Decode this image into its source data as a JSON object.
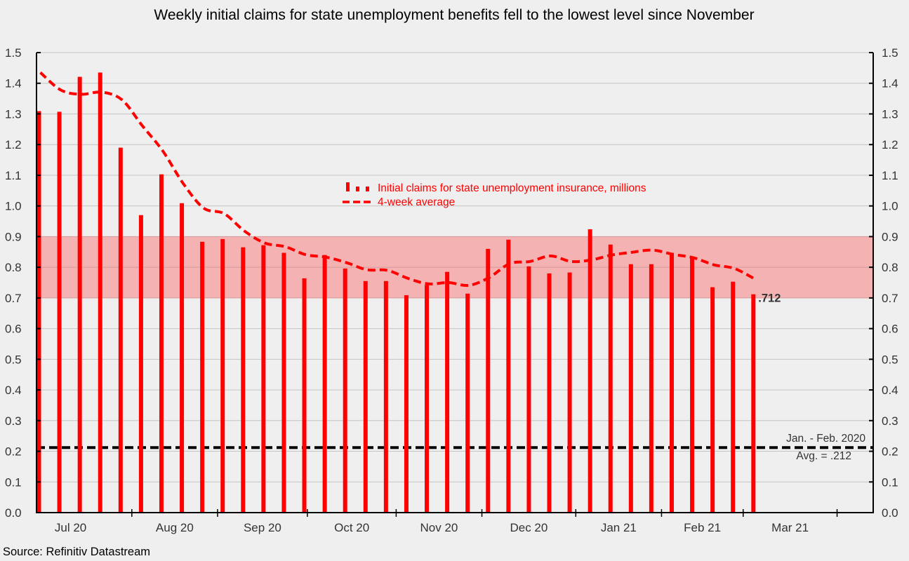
{
  "chart_data": {
    "type": "bar",
    "title": "Weekly initial claims for state unemployment benefits fell to the lowest level since November",
    "source": "Source: Refinitiv Datastream",
    "xlabel": "",
    "ylabel": "",
    "ylim": [
      0.0,
      1.5
    ],
    "y_ticks": [
      "0.0",
      "0.1",
      "0.2",
      "0.3",
      "0.4",
      "0.5",
      "0.6",
      "0.7",
      "0.8",
      "0.9",
      "1.0",
      "1.1",
      "1.2",
      "1.3",
      "1.4",
      "1.5"
    ],
    "y_tick_values": [
      0.0,
      0.1,
      0.2,
      0.3,
      0.4,
      0.5,
      0.6,
      0.7,
      0.8,
      0.9,
      1.0,
      1.1,
      1.2,
      1.3,
      1.4,
      1.5
    ],
    "grid": true,
    "x_month_labels": [
      "Jul 20",
      "Aug 20",
      "Sep 20",
      "Oct 20",
      "Nov 20",
      "Dec 20",
      "Jan 21",
      "Feb 21",
      "Mar 21"
    ],
    "x_range_weeks": [
      0,
      41
    ],
    "month_boundaries_weeks": [
      4.55,
      8.75,
      13.15,
      17.5,
      21.7,
      26.3,
      30.5,
      34.5,
      39.1
    ],
    "legend_position": "center",
    "legend": [
      {
        "label": "Initial claims for state unemployment insurance,  millions",
        "type": "bar",
        "color": "#ff0000"
      },
      {
        "label": "4-week average",
        "type": "dashed-line",
        "color": "#ff0000"
      }
    ],
    "series": [
      {
        "name": "Initial claims for state unemployment insurance, millions",
        "type": "bar",
        "color": "#ff0000",
        "values": [
          1.309,
          1.307,
          1.421,
          1.435,
          1.19,
          0.97,
          1.103,
          1.009,
          0.883,
          0.892,
          0.865,
          0.872,
          0.847,
          0.764,
          0.84,
          0.796,
          0.755,
          0.755,
          0.709,
          0.742,
          0.785,
          0.714,
          0.86,
          0.89,
          0.803,
          0.78,
          0.783,
          0.924,
          0.874,
          0.81,
          0.81,
          0.847,
          0.833,
          0.735,
          0.753,
          0.712
        ]
      },
      {
        "name": "4-week average",
        "type": "line",
        "style": "dashed",
        "color": "#ff0000",
        "values": [
          1.435,
          1.378,
          1.364,
          1.371,
          1.346,
          1.261,
          1.179,
          1.073,
          0.993,
          0.975,
          0.918,
          0.879,
          0.867,
          0.841,
          0.833,
          0.815,
          0.792,
          0.79,
          0.764,
          0.746,
          0.75,
          0.741,
          0.767,
          0.812,
          0.819,
          0.837,
          0.819,
          0.824,
          0.84,
          0.849,
          0.856,
          0.842,
          0.831,
          0.808,
          0.796,
          0.762
        ]
      }
    ],
    "shaded_band": {
      "from": 0.7,
      "to": 0.9,
      "color": "#f4b2b2"
    },
    "reference_line": {
      "value": 0.212,
      "style": "dashed",
      "color": "#000000",
      "label_line1": "Jan. - Feb. 2020",
      "label_line2": "Avg. = .212"
    },
    "annotations": [
      {
        "text": ".712",
        "series": 0,
        "index": 35
      }
    ]
  }
}
